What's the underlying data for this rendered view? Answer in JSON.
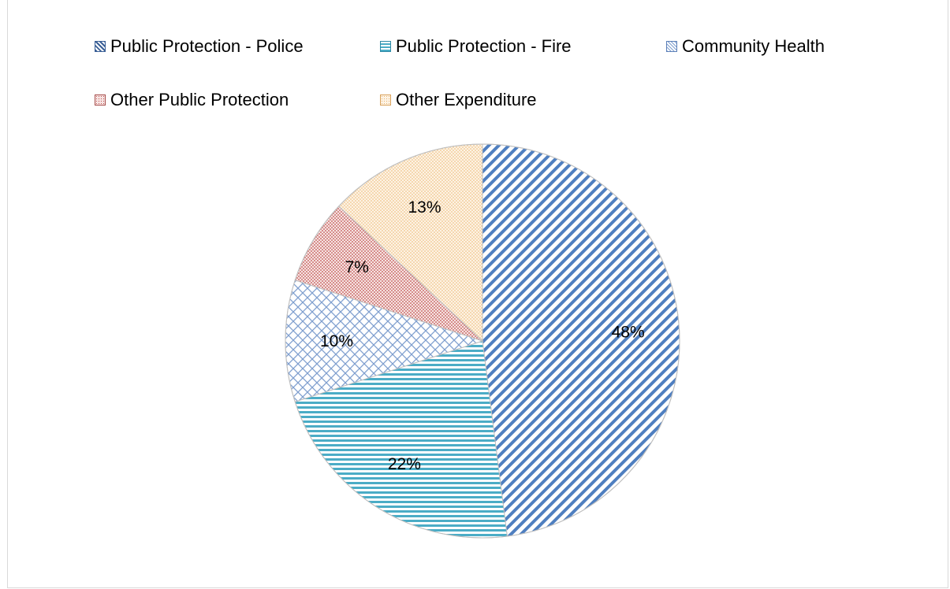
{
  "chart_data": {
    "type": "pie",
    "legend_position": "top",
    "slices": [
      {
        "label": "Public Protection - Police",
        "value": 48,
        "value_label": "48%",
        "pattern": "diag-blue",
        "color": "#4f7fc0",
        "bg": "#ffffff"
      },
      {
        "label": "Public Protection - Fire",
        "value": 22,
        "value_label": "22%",
        "pattern": "horiz-cyan",
        "color": "#4bacc6",
        "bg": "#ffffff"
      },
      {
        "label": "Community Health",
        "value": 10,
        "value_label": "10%",
        "pattern": "cross-blue",
        "color": "#7f9fcf",
        "bg": "#ffffff"
      },
      {
        "label": "Other Public Protection",
        "value": 7,
        "value_label": "7%",
        "pattern": "dots-red",
        "color": "#c0504d",
        "bg": "#f6e3e2"
      },
      {
        "label": "Other Expenditure",
        "value": 13,
        "value_label": "13%",
        "pattern": "dots-tan",
        "color": "#f0c48a",
        "bg": "#fdf3e4"
      }
    ]
  }
}
